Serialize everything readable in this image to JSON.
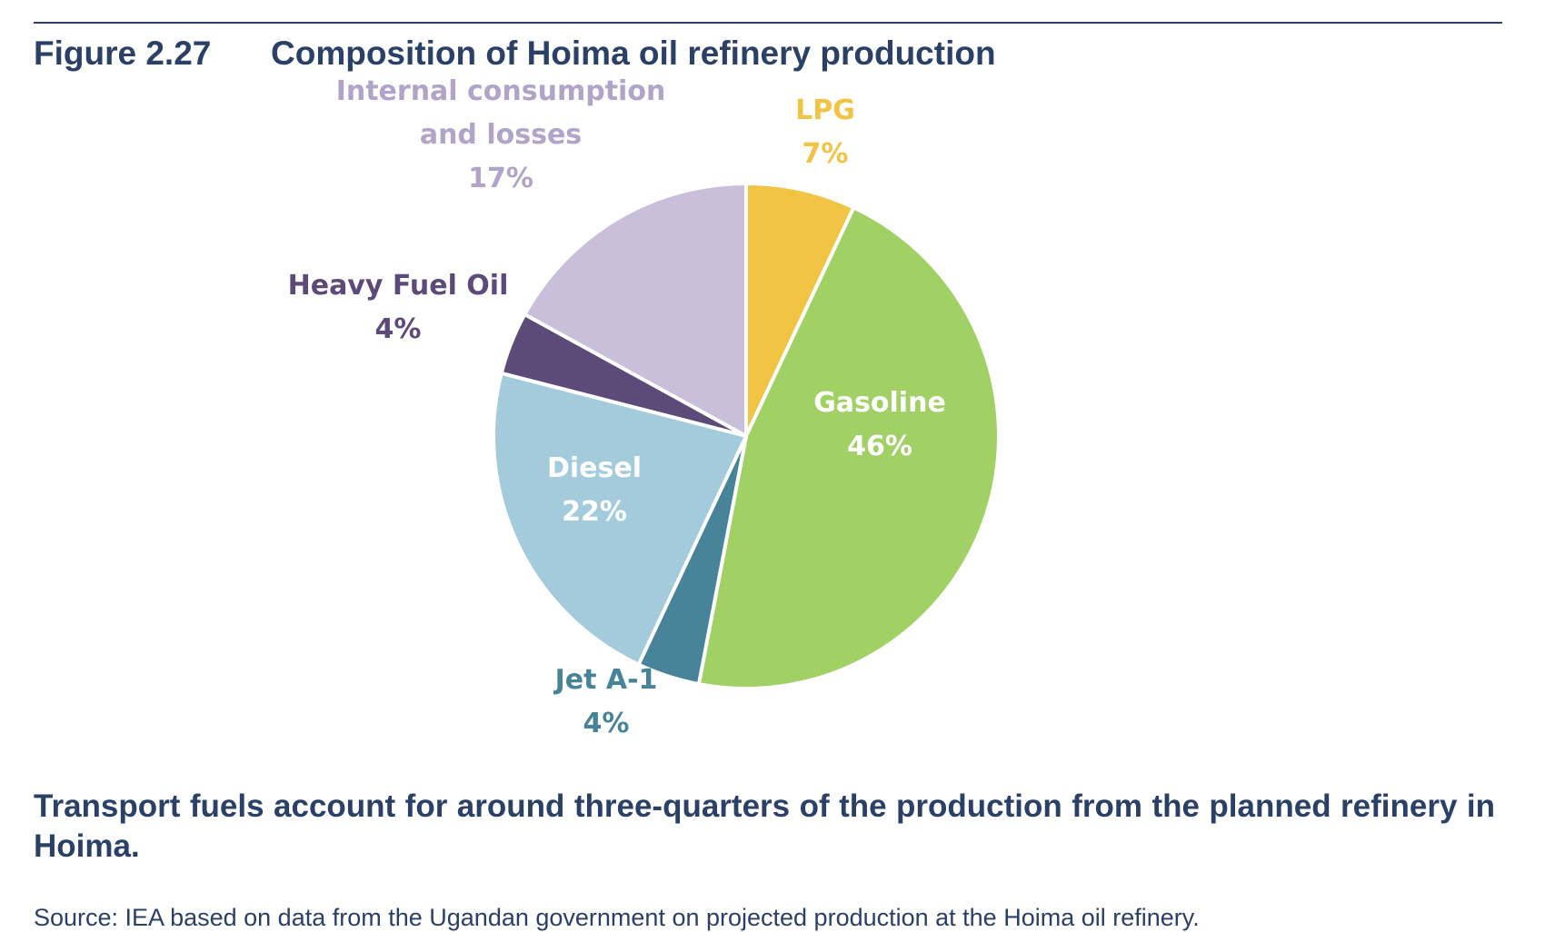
{
  "figure": {
    "label": "Figure 2.27",
    "title": "Composition of Hoima oil refinery production"
  },
  "chart_data": {
    "type": "pie",
    "unit": "%",
    "slices": [
      {
        "name": "LPG",
        "value": 7,
        "value_label": "7%",
        "color": "#f2c443",
        "label_color": "#f2c443"
      },
      {
        "name": "Gasoline",
        "value": 46,
        "value_label": "46%",
        "color": "#a1d064",
        "label_color": "#ffffff"
      },
      {
        "name": "Jet A-1",
        "value": 4,
        "value_label": "4%",
        "color": "#47849a",
        "label_color": "#47849a"
      },
      {
        "name": "Diesel",
        "value": 22,
        "value_label": "22%",
        "color": "#a3cbdb",
        "label_color": "#ffffff"
      },
      {
        "name": "Heavy Fuel Oil",
        "value": 4,
        "value_label": "4%",
        "color": "#5c4a78",
        "label_color": "#5c4a78"
      },
      {
        "name": "Internal consumption and losses",
        "name_lines": [
          "Internal consumption",
          "and losses"
        ],
        "value": 17,
        "value_label": "17%",
        "color": "#c9bfda",
        "label_color": "#b0a4c8"
      }
    ]
  },
  "caption": "Transport fuels account for around three-quarters of the production from the planned refinery in Hoima.",
  "source": "Source: IEA based on data from the Ugandan government on projected production at the Hoima oil refinery."
}
